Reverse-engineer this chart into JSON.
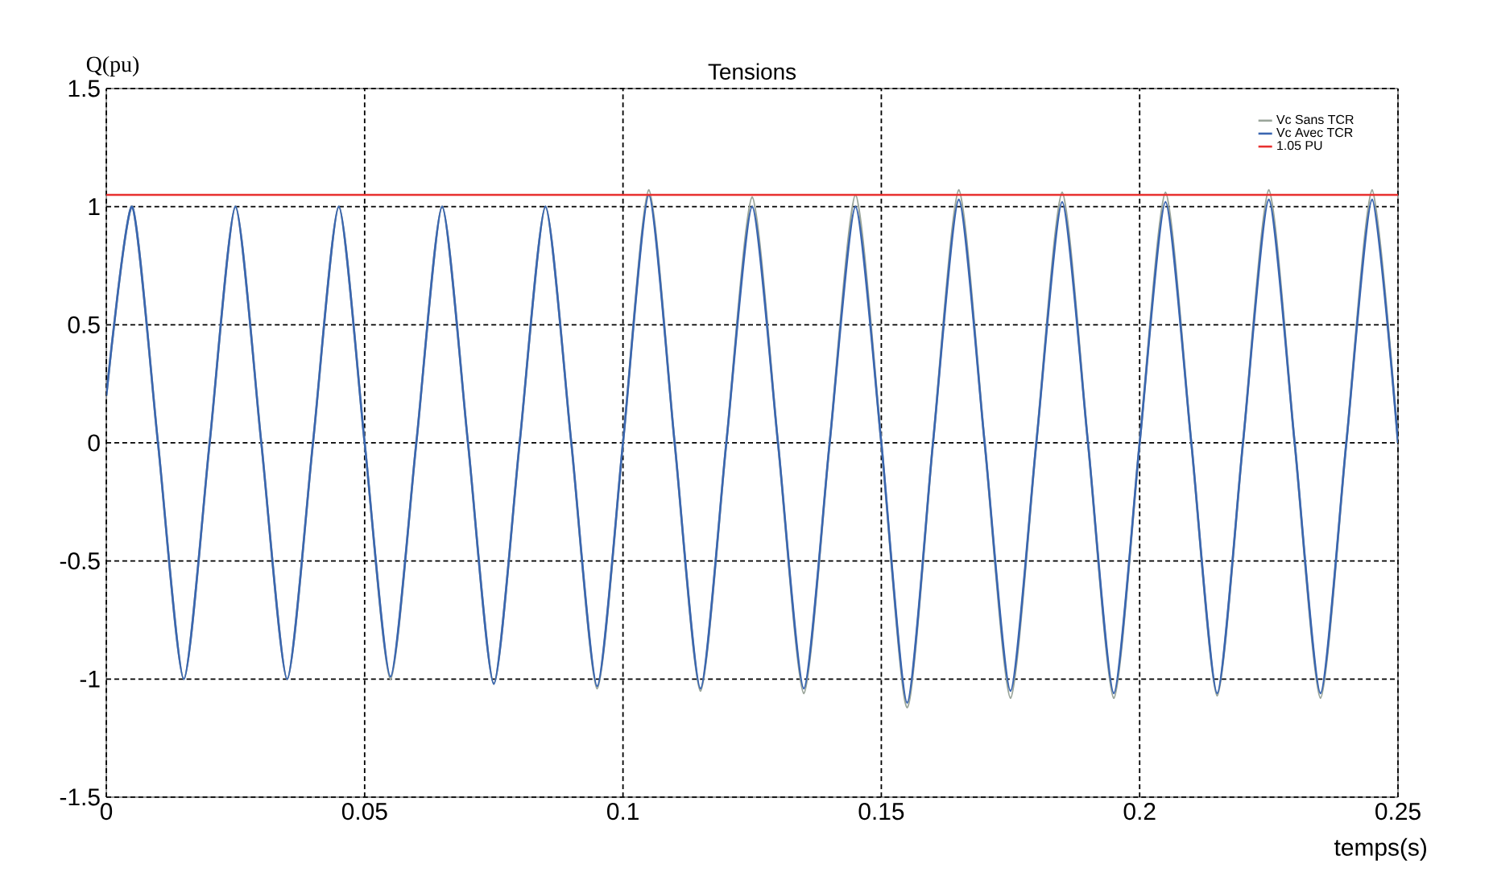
{
  "chart_data": {
    "type": "line",
    "title": "Tensions",
    "xlabel": "temps(s)",
    "ylabel": "Q(pu)",
    "x": [
      0,
      0.005,
      0.01,
      0.015,
      0.02,
      0.025,
      0.03,
      0.035,
      0.04,
      0.045,
      0.05,
      0.055,
      0.06,
      0.065,
      0.07,
      0.075,
      0.08,
      0.085,
      0.09,
      0.095,
      0.1,
      0.105,
      0.11,
      0.115,
      0.12,
      0.125,
      0.13,
      0.135,
      0.14,
      0.145,
      0.15,
      0.155,
      0.16,
      0.165,
      0.17,
      0.175,
      0.18,
      0.185,
      0.19,
      0.195,
      0.2,
      0.205,
      0.21,
      0.215,
      0.22,
      0.225,
      0.23,
      0.235,
      0.24,
      0.245,
      0.25
    ],
    "series": [
      {
        "name": "Vc Sans TCR",
        "color": "#9aa59a",
        "values": [
          0.2,
          1.0,
          0,
          -1.0,
          0,
          1.0,
          0,
          -1.0,
          0,
          1.0,
          0,
          -1.0,
          0,
          1.0,
          0,
          -1.02,
          0,
          1.0,
          0,
          -1.04,
          0,
          1.07,
          0,
          -1.05,
          0,
          1.04,
          0,
          -1.06,
          0,
          1.05,
          0,
          -1.12,
          0,
          1.07,
          0,
          -1.08,
          0,
          1.06,
          0,
          -1.08,
          0,
          1.06,
          0,
          -1.07,
          0,
          1.07,
          0,
          -1.08,
          0,
          1.07,
          0
        ]
      },
      {
        "name": "Vc Avec TCR",
        "color": "#3a66b0",
        "values": [
          0.2,
          1.0,
          0,
          -1.0,
          0,
          1.0,
          0,
          -1.0,
          0,
          1.0,
          0,
          -0.99,
          0,
          1.0,
          0,
          -1.02,
          0,
          1.0,
          0,
          -1.03,
          0,
          1.05,
          0,
          -1.04,
          0,
          1.0,
          0,
          -1.04,
          0,
          1.0,
          0,
          -1.1,
          0,
          1.03,
          0,
          -1.05,
          0,
          1.02,
          0,
          -1.06,
          0,
          1.02,
          0,
          -1.06,
          0,
          1.03,
          0,
          -1.06,
          0,
          1.03,
          0
        ]
      },
      {
        "name": "1.05 PU",
        "color": "#e8302f",
        "x": [
          0,
          0.25
        ],
        "values": [
          1.05,
          1.05
        ]
      }
    ],
    "xlim": [
      0,
      0.25
    ],
    "ylim": [
      -1.5,
      1.5
    ],
    "xticks": [
      0,
      0.05,
      0.1,
      0.15,
      0.2,
      0.25
    ],
    "yticks": [
      -1.5,
      -1,
      -0.5,
      0,
      0.5,
      1,
      1.5
    ],
    "grid": true,
    "legend": "top right",
    "line_style": "solid"
  }
}
